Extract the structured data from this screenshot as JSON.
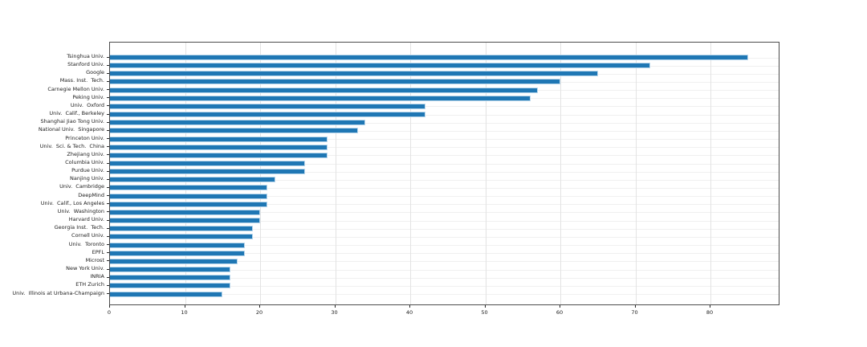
{
  "chart_data": {
    "type": "bar",
    "orientation": "horizontal",
    "title": "",
    "xlabel": "",
    "ylabel": "",
    "categories": [
      "Tsinghua Univ.",
      "Stanford Univ.",
      "Google",
      "Mass. Inst.  Tech.",
      "Carnegie Mellon Univ.",
      "Peking Univ.",
      "Univ.  Oxford",
      "Univ.  Calif., Berkeley",
      "Shanghai Jiao Tong Univ.",
      "National Univ.  Singapore",
      "Princeton Univ.",
      "Univ.  Sci. & Tech.  China",
      "Zhejiang Univ.",
      "Columbia Univ.",
      "Purdue Univ.",
      "Nanjing Univ.",
      "Univ.  Cambridge",
      "DeepMind",
      "Univ.  Calif., Los Angeles",
      "Univ.  Washington",
      "Harvard Univ.",
      "Georgia Inst.  Tech.",
      "Cornell Univ.",
      "Univ.  Toronto",
      "EPFL",
      "Microst",
      "New York Univ.",
      "INRIA",
      "ETH Zurich",
      "Univ.  Illinois at Urbana-Champaign"
    ],
    "values": [
      85,
      72,
      65,
      60,
      57,
      56,
      42,
      42,
      34,
      33,
      29,
      29,
      29,
      26,
      26,
      22,
      21,
      21,
      21,
      20,
      20,
      19,
      19,
      18,
      18,
      17,
      16,
      16,
      16,
      15
    ],
    "xticks": [
      0,
      10,
      20,
      30,
      40,
      50,
      60,
      70,
      80
    ],
    "xtick_labels": [
      "0",
      "10",
      "20",
      "30",
      "40",
      "50",
      "60",
      "70",
      "80"
    ],
    "xlim": [
      0,
      89.3
    ],
    "grid": true,
    "legend": null,
    "bar_color": "#1f77b4",
    "bar_edge_color": "#b9d7ec",
    "vgrid_color": "#e3e3e3",
    "hgrid_color": "#f0f0f0",
    "spine_color": "#4c4c4c",
    "tick_color": "#262626"
  }
}
